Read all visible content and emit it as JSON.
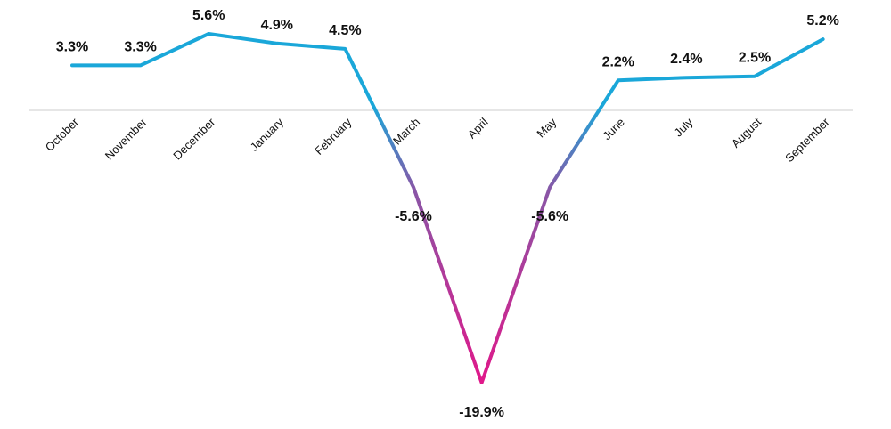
{
  "chart_data": {
    "type": "line",
    "title": "",
    "xlabel": "",
    "ylabel": "",
    "categories": [
      "October",
      "November",
      "December",
      "January",
      "February",
      "March",
      "April",
      "May",
      "June",
      "July",
      "August",
      "September"
    ],
    "series": [
      {
        "values": [
          3.3,
          3.3,
          5.6,
          4.9,
          4.5,
          -5.6,
          -19.9,
          -5.6,
          2.2,
          2.4,
          2.5,
          5.2
        ]
      }
    ],
    "data_labels": [
      "3.3%",
      "3.3%",
      "5.6%",
      "4.9%",
      "4.5%",
      "-5.6%",
      "-19.9%",
      "-5.6%",
      "2.2%",
      "2.4%",
      "2.5%",
      "5.2%"
    ],
    "ylim": [
      -19.9,
      5.6
    ],
    "grid": false,
    "legend": "none",
    "colors": {
      "positive": "#1aa7d9",
      "mid": "#8a55a6",
      "negative": "#e0188a",
      "axis": "#cccccc",
      "text": "#111111"
    }
  }
}
